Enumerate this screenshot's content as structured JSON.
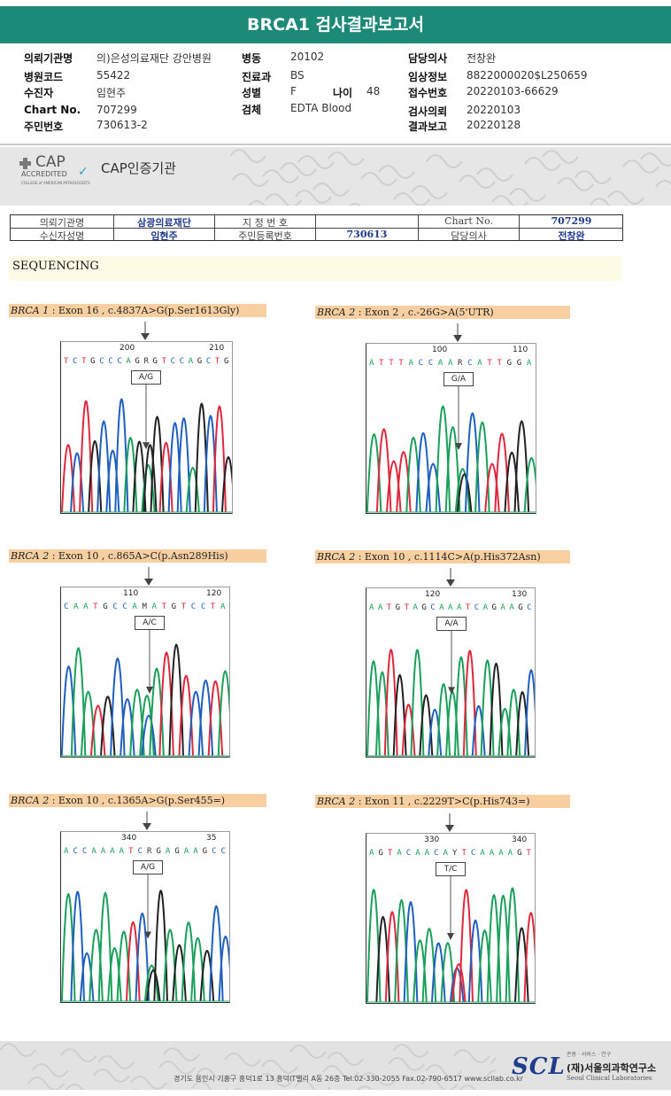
{
  "report": {
    "title": "BRCA1 검사결과보고서"
  },
  "header": [
    {
      "label": "의뢰기관명",
      "value": "의)은성의료재단 강안병원"
    },
    {
      "label": "병원코드",
      "value": "55422"
    },
    {
      "label": "수진자",
      "value": "임현주"
    },
    {
      "label": "Chart No.",
      "value": "707299"
    },
    {
      "label": "주민번호",
      "value": "730613-2"
    },
    {
      "label": "병동",
      "value": "20102"
    },
    {
      "label": "진료과",
      "value": "BS"
    },
    {
      "label": "성별",
      "value": "F"
    },
    {
      "label": "나이",
      "value": "48"
    },
    {
      "label": "검체",
      "value": "EDTA Blood"
    },
    {
      "label": "담당의사",
      "value": "전창완"
    },
    {
      "label": "임상정보",
      "value": "8822000020$L250659"
    },
    {
      "label": "접수번호",
      "value": "20220103-66629"
    },
    {
      "label": "검사의뢰",
      "value": "20220103"
    },
    {
      "label": "결과보고",
      "value": "20220128"
    }
  ],
  "cap": {
    "logo_top": "CAP",
    "logo_sub": "ACCREDITED",
    "logo_fine": "COLLEGE of AMERICAN PATHOLOGISTS",
    "text": "CAP인증기관"
  },
  "id_table": {
    "org_label": "의뢰기관명",
    "org_value": "삼광의료재단",
    "patient_label": "수신자성명",
    "patient_value": "임현주",
    "designated_label": "지 정 번 호",
    "designated_value": "",
    "rrn_label": "주민등록번호",
    "rrn_value": "730613",
    "chart_label": "Chart No.",
    "chart_value": "707299",
    "doctor_label": "담당의사",
    "doctor_value": "전창완"
  },
  "section": {
    "title": "SEQUENCING"
  },
  "panels": [
    {
      "gene": "BRCA 1",
      "desc": " : Exon 16 , c.4837A>G(p.Ser1613Gly)",
      "pos_left": "200",
      "pos_right": "210",
      "seq": "TCTGCCCAGRGTCCAGCTG",
      "genotype": "A/G"
    },
    {
      "gene": "BRCA 2",
      "desc": " : Exon 2 , c.-26G>A(5'UTR)",
      "pos_left": "100",
      "pos_right": "110",
      "seq": "ATTTACCAARCATTGGA",
      "genotype": "G/A"
    },
    {
      "gene": "BRCA 2",
      "desc": " : Exon 10 , c.865A>C(p.Asn289His)",
      "pos_left": "110",
      "pos_right": "120",
      "seq": "CAATGCCAMATGTCCTA",
      "genotype": "A/C"
    },
    {
      "gene": "BRCA 2",
      "desc": " : Exon 10 , c.1114C>A(p.His372Asn)",
      "pos_left": "120",
      "pos_right": "130",
      "seq": "AATGTAGCAAATCAGAAGC",
      "genotype": "A/A"
    },
    {
      "gene": "BRCA 2",
      "desc": " : Exon 10 , c.1365A>G(p.Ser455=)",
      "pos_left": "340",
      "pos_right": "35",
      "seq": "ACCAAAATCRGAGAAGCC",
      "genotype": "A/G"
    },
    {
      "gene": "BRCA 2",
      "desc": " : Exon 11 , c.2229T>C(p.His743=)",
      "pos_left": "330",
      "pos_right": "340",
      "seq": "AGTACAACAYTCAAAAGT",
      "genotype": "T/C"
    }
  ],
  "footer": {
    "address": "경기도 용인시 기흥구 흥덕1로 13 흥덕IT밸리 A동 26층  Tel.02-330-2055  Fax.02-790-6517  www.scllab.co.kr",
    "logo": "SCL",
    "tagline": "존중 · 서비스 · 연구",
    "org": "(재)서울의과학연구소",
    "org_en": "Seoul Clinical Laboratories"
  },
  "colors": {
    "A": "#1aa05a",
    "C": "#1f5fbf",
    "G": "#222222",
    "T": "#e0283c",
    "header_green": "#1d8a78",
    "label_fill": "#f7cfa0"
  }
}
